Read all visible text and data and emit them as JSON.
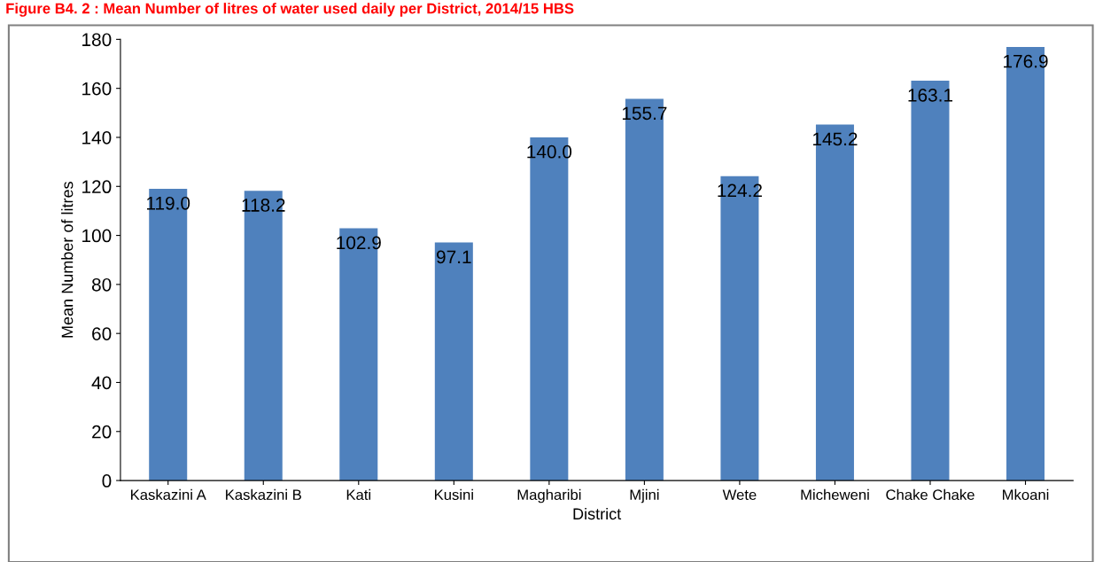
{
  "chart_data": {
    "type": "bar",
    "title": "Figure B4. 2 : Mean Number of litres of water used daily per District, 2014/15 HBS",
    "xlabel": "District",
    "ylabel": "Mean Number of litres",
    "categories": [
      "Kaskazini A",
      "Kaskazini B",
      "Kati",
      "Kusini",
      "Magharibi",
      "Mjini",
      "Wete",
      "Micheweni",
      "Chake Chake",
      "Mkoani"
    ],
    "values": [
      119.0,
      118.2,
      102.9,
      97.1,
      140.0,
      155.7,
      124.2,
      145.2,
      163.1,
      176.9
    ],
    "value_labels": [
      "119.0",
      "118.2",
      "102.9",
      "97.1",
      "140.0",
      "155.7",
      "124.2",
      "145.2",
      "163.1",
      "176.9"
    ],
    "color": "#4f81bd",
    "ylim": [
      0,
      180
    ],
    "yticks": [
      0,
      20,
      40,
      60,
      80,
      100,
      120,
      140,
      160,
      180
    ],
    "grid": false
  }
}
